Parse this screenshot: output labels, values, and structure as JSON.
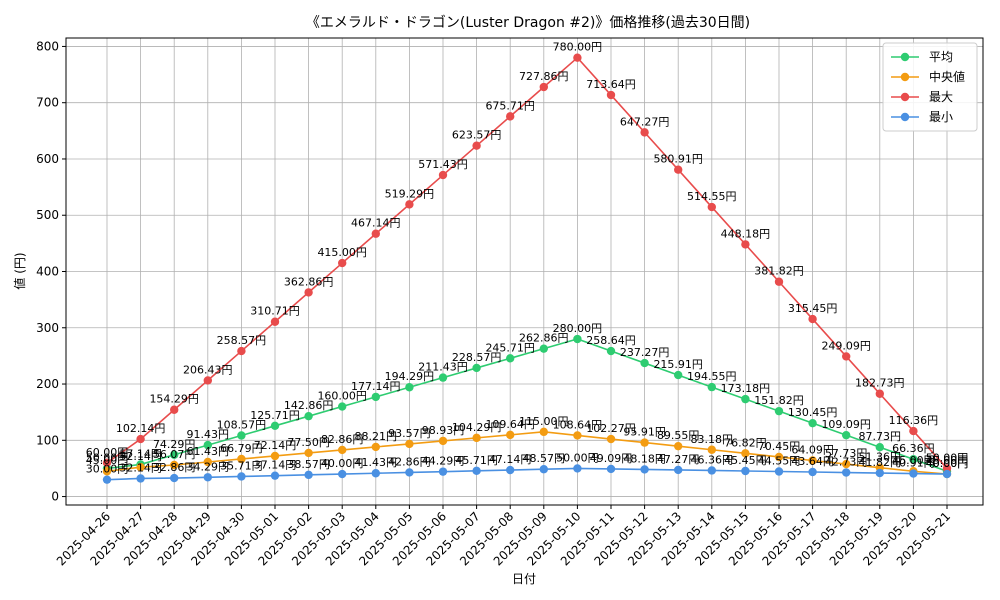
{
  "chart_data": {
    "type": "line",
    "title": "《エメラルド・ドラゴン(Luster Dragon #2)》価格推移(過去30日間)",
    "xlabel": "日付",
    "ylabel": "値 (円)",
    "value_suffix": "円",
    "categories": [
      "2025-04-26",
      "2025-04-27",
      "2025-04-28",
      "2025-04-29",
      "2025-04-30",
      "2025-05-01",
      "2025-05-02",
      "2025-05-03",
      "2025-05-04",
      "2025-05-05",
      "2025-05-06",
      "2025-05-07",
      "2025-05-08",
      "2025-05-09",
      "2025-05-10",
      "2025-05-11",
      "2025-05-12",
      "2025-05-13",
      "2025-05-14",
      "2025-05-15",
      "2025-05-16",
      "2025-05-17",
      "2025-05-18",
      "2025-05-19",
      "2025-05-20",
      "2025-05-21"
    ],
    "ylim": [
      -15,
      815
    ],
    "yticks": [
      0,
      100,
      200,
      300,
      400,
      500,
      600,
      700,
      800
    ],
    "grid": true,
    "legend_position": "top-right",
    "series": [
      {
        "name": "平均",
        "color": "#2ecc71",
        "values": [
          50.0,
          57.14,
          74.29,
          91.43,
          108.57,
          125.71,
          142.86,
          160.0,
          177.14,
          194.29,
          211.43,
          228.57,
          245.71,
          262.86,
          280.0,
          258.64,
          237.27,
          215.91,
          194.55,
          173.18,
          151.82,
          130.45,
          109.09,
          87.73,
          66.36,
          45.0
        ]
      },
      {
        "name": "中央値",
        "color": "#f39c12",
        "values": [
          45.0,
          52.14,
          56.07,
          61.43,
          66.79,
          72.14,
          77.5,
          82.86,
          88.21,
          93.57,
          98.93,
          104.29,
          109.64,
          115.0,
          108.64,
          102.27,
          95.91,
          89.55,
          83.18,
          76.82,
          70.45,
          64.09,
          57.73,
          51.36,
          45.0,
          40.0
        ]
      },
      {
        "name": "最大",
        "color": "#e84c4c",
        "values": [
          60.0,
          102.14,
          154.29,
          206.43,
          258.57,
          310.71,
          362.86,
          415.0,
          467.14,
          519.29,
          571.43,
          623.57,
          675.71,
          727.86,
          780.0,
          713.64,
          647.27,
          580.91,
          514.55,
          448.18,
          381.82,
          315.45,
          249.09,
          182.73,
          116.36,
          50.0
        ]
      },
      {
        "name": "最小",
        "color": "#4a90e2",
        "values": [
          30.0,
          32.14,
          32.86,
          34.29,
          35.71,
          37.14,
          38.57,
          40.0,
          41.43,
          42.86,
          44.29,
          45.71,
          47.14,
          48.57,
          50.0,
          49.09,
          48.18,
          47.27,
          46.36,
          45.45,
          44.55,
          43.64,
          42.73,
          41.82,
          40.91,
          40.0
        ]
      }
    ]
  }
}
